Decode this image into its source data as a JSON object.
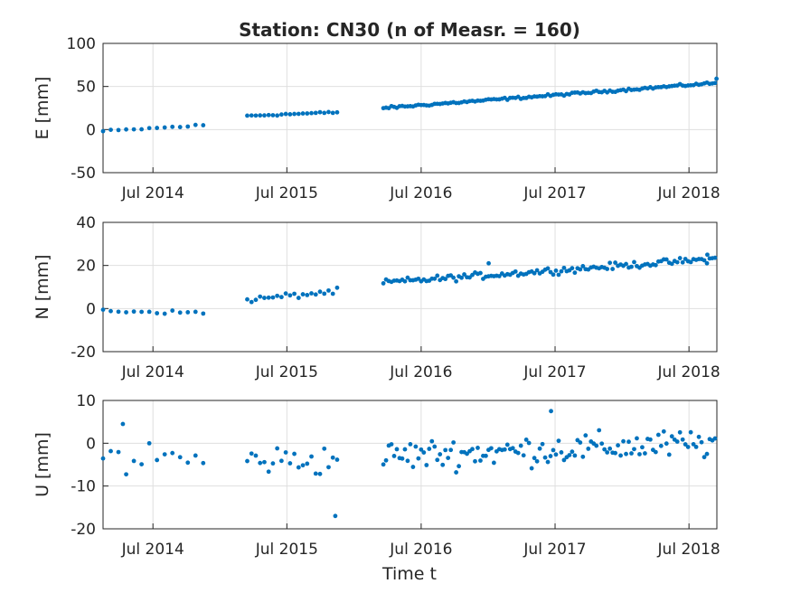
{
  "chart_data": {
    "type": "scatter",
    "title": "Station: CN30 (n of Measr. = 160)",
    "xlabel": "Time t",
    "colors": {
      "points": "#0072bd",
      "grid": "#dfdfdf",
      "axes": "#262626"
    },
    "grid": true,
    "x_ticks": [
      "Jul 2014",
      "Jul 2015",
      "Jul 2016",
      "Jul 2017",
      "Jul 2018"
    ],
    "x_tick_dates": [
      "2014-07-01",
      "2015-07-01",
      "2016-07-01",
      "2017-07-01",
      "2018-07-01"
    ],
    "xlim": [
      "2014-02-15",
      "2018-09-15"
    ],
    "panels": [
      {
        "ylabel": "E [mm]",
        "ylim": [
          -50,
          100
        ],
        "yticks": [
          -50,
          0,
          50,
          100
        ],
        "segments": [
          {
            "start": "2014-02-15",
            "end": "2014-11-15",
            "n": 14,
            "y0": -2,
            "y1": 5,
            "noise": 1.2
          },
          {
            "start": "2015-03-15",
            "end": "2015-11-15",
            "n": 22,
            "y0": 16,
            "y1": 20,
            "noise": 1
          },
          {
            "start": "2016-03-20",
            "end": "2018-09-10",
            "n": 124,
            "y0": 25,
            "y1": 54,
            "noise": 1.2
          }
        ],
        "extra_points": [
          [
            "2018-09-14",
            59
          ]
        ]
      },
      {
        "ylabel": "N [mm]",
        "ylim": [
          -20,
          40
        ],
        "yticks": [
          -20,
          0,
          20,
          40
        ],
        "segments": [
          {
            "start": "2014-02-15",
            "end": "2014-11-15",
            "n": 14,
            "y0": -1,
            "y1": -2,
            "noise": 0.7
          },
          {
            "start": "2015-03-15",
            "end": "2015-11-15",
            "n": 22,
            "y0": 4,
            "y1": 8,
            "noise": 1.2
          },
          {
            "start": "2016-03-20",
            "end": "2018-09-10",
            "n": 124,
            "y0": 12,
            "y1": 23,
            "noise": 1.3
          }
        ],
        "extra_points": [
          [
            "2017-01-01",
            21
          ],
          [
            "2018-08-20",
            25
          ]
        ]
      },
      {
        "ylabel": "U [mm]",
        "ylim": [
          -20,
          10
        ],
        "yticks": [
          -20,
          -10,
          0,
          10
        ],
        "segments": [
          {
            "start": "2014-02-15",
            "end": "2014-11-15",
            "n": 14,
            "y0": -3,
            "y1": -4,
            "noise": 4
          },
          {
            "start": "2015-03-15",
            "end": "2015-11-15",
            "n": 22,
            "y0": -4,
            "y1": -4,
            "noise": 3
          },
          {
            "start": "2016-03-20",
            "end": "2018-09-10",
            "n": 124,
            "y0": -3,
            "y1": 0,
            "noise": 3
          }
        ],
        "extra_points": [
          [
            "2015-11-10",
            -17
          ],
          [
            "2017-06-20",
            7.5
          ],
          [
            "2014-04-10",
            4.5
          ]
        ]
      }
    ]
  }
}
